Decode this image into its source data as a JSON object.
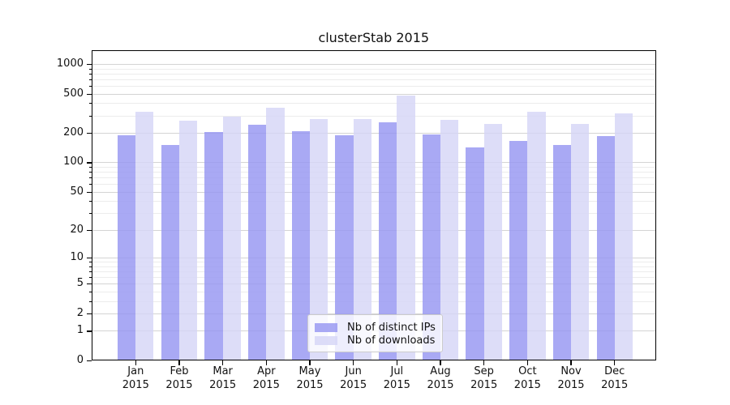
{
  "title": "clusterStab 2015",
  "chart_data": {
    "type": "bar",
    "title": "clusterStab 2015",
    "categories": [
      "Jan 2015",
      "Feb 2015",
      "Mar 2015",
      "Apr 2015",
      "May 2015",
      "Jun 2015",
      "Jul 2015",
      "Aug 2015",
      "Sep 2015",
      "Oct 2015",
      "Nov 2015",
      "Dec 2015"
    ],
    "series": [
      {
        "name": "Nb of distinct IPs",
        "color": "#9696f2",
        "values": [
          190,
          150,
          205,
          240,
          206,
          190,
          258,
          194,
          141,
          167,
          150,
          184
        ]
      },
      {
        "name": "Nb of downloads",
        "color": "#d5d5f6",
        "values": [
          330,
          265,
          290,
          358,
          276,
          277,
          475,
          272,
          245,
          330,
          245,
          315
        ]
      }
    ],
    "xlabel": "",
    "ylabel": "",
    "yscale": "log1p",
    "yticks": [
      0,
      1,
      2,
      5,
      10,
      20,
      50,
      100,
      200,
      500,
      1000
    ],
    "ylim": [
      0,
      1340
    ],
    "grid": true,
    "legend_position": "lower center",
    "grid_major_color": "#d4d4d4",
    "grid_minor_color": "#ececec"
  }
}
